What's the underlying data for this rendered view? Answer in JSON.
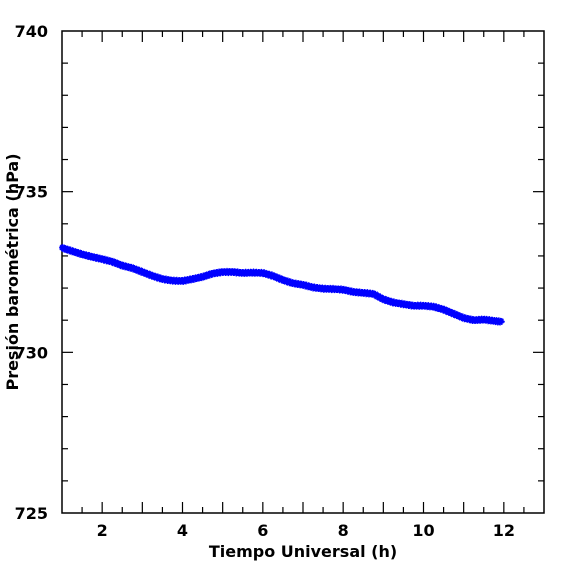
{
  "chart_data": {
    "type": "scatter",
    "title": "",
    "xlabel": "Tiempo Universal (h)",
    "ylabel": "Presión barométrica (hPa)",
    "xlim": [
      1,
      13
    ],
    "ylim": [
      725,
      740
    ],
    "x_ticks": [
      2,
      4,
      6,
      8,
      10,
      12
    ],
    "y_ticks": [
      725,
      730,
      735,
      740
    ],
    "x_tick_labels": [
      "2",
      "4",
      "6",
      "8",
      "10",
      "12"
    ],
    "y_tick_labels": [
      "725",
      "730",
      "735",
      "740"
    ],
    "grid": false,
    "marker": "star",
    "series": [
      {
        "color": "#0000ff",
        "points": [
          [
            1.0,
            733.25
          ],
          [
            1.25,
            733.15
          ],
          [
            1.5,
            733.05
          ],
          [
            1.75,
            732.97
          ],
          [
            2.0,
            732.9
          ],
          [
            2.25,
            732.82
          ],
          [
            2.5,
            732.7
          ],
          [
            2.75,
            732.62
          ],
          [
            3.0,
            732.5
          ],
          [
            3.25,
            732.38
          ],
          [
            3.5,
            732.28
          ],
          [
            3.75,
            732.23
          ],
          [
            4.0,
            732.22
          ],
          [
            4.25,
            732.28
          ],
          [
            4.5,
            732.35
          ],
          [
            4.75,
            732.45
          ],
          [
            5.0,
            732.5
          ],
          [
            5.25,
            732.5
          ],
          [
            5.5,
            732.47
          ],
          [
            5.75,
            732.48
          ],
          [
            6.0,
            732.47
          ],
          [
            6.25,
            732.38
          ],
          [
            6.5,
            732.25
          ],
          [
            6.75,
            732.15
          ],
          [
            7.0,
            732.1
          ],
          [
            7.25,
            732.02
          ],
          [
            7.5,
            731.98
          ],
          [
            7.75,
            731.97
          ],
          [
            8.0,
            731.95
          ],
          [
            8.25,
            731.88
          ],
          [
            8.5,
            731.85
          ],
          [
            8.75,
            731.82
          ],
          [
            9.0,
            731.65
          ],
          [
            9.25,
            731.55
          ],
          [
            9.5,
            731.5
          ],
          [
            9.75,
            731.45
          ],
          [
            10.0,
            731.45
          ],
          [
            10.25,
            731.42
          ],
          [
            10.5,
            731.33
          ],
          [
            10.75,
            731.2
          ],
          [
            11.0,
            731.07
          ],
          [
            11.25,
            731.0
          ],
          [
            11.5,
            731.02
          ],
          [
            11.75,
            730.98
          ],
          [
            11.95,
            730.95
          ]
        ]
      }
    ]
  }
}
